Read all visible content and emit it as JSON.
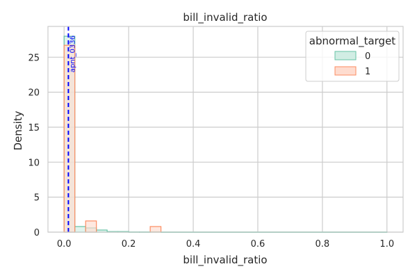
{
  "chart_data": {
    "type": "histogram",
    "title": "bill_invalid_ratio",
    "xlabel": "bill_invalid_ratio",
    "ylabel": "Density",
    "xlim": [
      -0.05,
      1.05
    ],
    "ylim": [
      0,
      29.4
    ],
    "xticks": [
      0.0,
      0.2,
      0.4,
      0.6,
      0.8,
      1.0
    ],
    "xtick_labels": [
      "0.0",
      "0.2",
      "0.4",
      "0.6",
      "0.8",
      "1.0"
    ],
    "yticks": [
      0,
      5,
      10,
      15,
      20,
      25
    ],
    "ytick_labels": [
      "0",
      "5",
      "10",
      "15",
      "20",
      "25"
    ],
    "grid": true,
    "legend": {
      "title": "abnormal_target",
      "position": "top-right",
      "entries": [
        {
          "label": "0",
          "edge_color": "#66c2a5",
          "fill_color": "#d1ede4"
        },
        {
          "label": "1",
          "edge_color": "#fc8d62",
          "fill_color": "#fedccf"
        }
      ]
    },
    "series": [
      {
        "name": "0",
        "bins": [
          {
            "x0": 0.0,
            "x1": 0.0333,
            "value": 28.0
          },
          {
            "x0": 0.0333,
            "x1": 0.0667,
            "value": 0.8
          },
          {
            "x0": 0.0667,
            "x1": 0.1,
            "value": 0.6
          },
          {
            "x0": 0.1,
            "x1": 0.1333,
            "value": 0.3
          },
          {
            "x0": 0.1333,
            "x1": 0.1667,
            "value": 0.08
          },
          {
            "x0": 0.1667,
            "x1": 0.2,
            "value": 0.08
          },
          {
            "x0": 0.2,
            "x1": 0.2333,
            "value": 0.03
          },
          {
            "x0": 0.2333,
            "x1": 0.2667,
            "value": 0.03
          },
          {
            "x0": 0.2667,
            "x1": 0.3,
            "value": 0.05
          },
          {
            "x0": 0.3,
            "x1": 1.0,
            "value": 0.02
          }
        ]
      },
      {
        "name": "1",
        "bins": [
          {
            "x0": 0.0,
            "x1": 0.0333,
            "value": 26.7
          },
          {
            "x0": 0.0667,
            "x1": 0.1,
            "value": 1.6
          },
          {
            "x0": 0.2667,
            "x1": 0.3,
            "value": 0.8
          }
        ]
      }
    ],
    "annotations": [
      {
        "type": "vline",
        "x": 0.0133,
        "color": "#0000ff",
        "style": "dashed",
        "label": "apnt_0336"
      }
    ]
  }
}
